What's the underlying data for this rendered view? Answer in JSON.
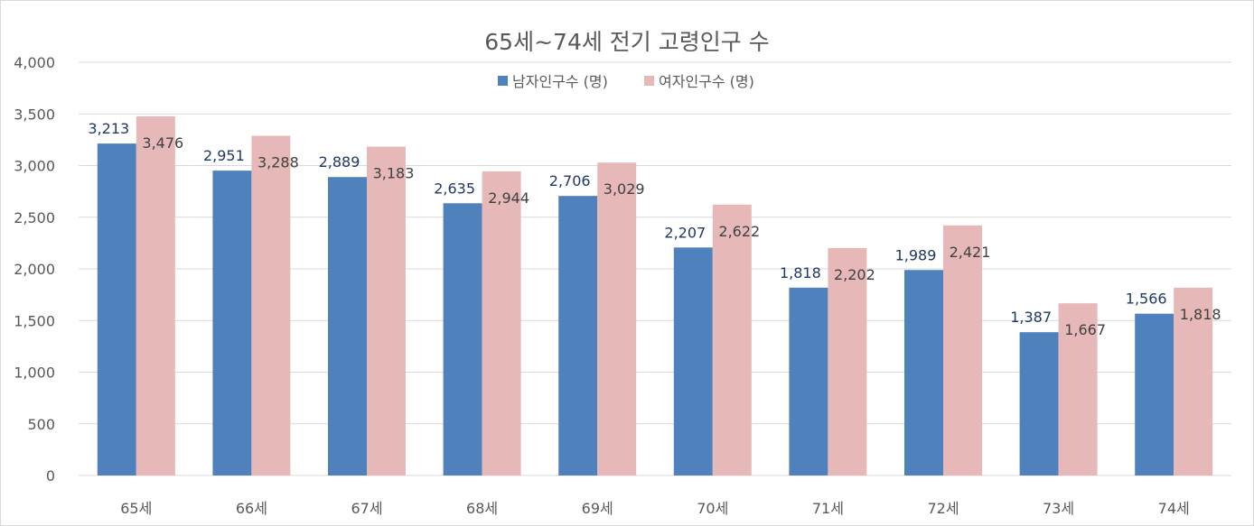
{
  "chart_data": {
    "type": "bar",
    "title": "65세~74세 전기 고령인구 수",
    "categories": [
      "65세",
      "66세",
      "67세",
      "68세",
      "69세",
      "70세",
      "71세",
      "72세",
      "73세",
      "74세"
    ],
    "series": [
      {
        "name": "남자인구수 (명)",
        "color": "#4f81bd",
        "values": [
          3213,
          2951,
          2889,
          2635,
          2706,
          2207,
          1818,
          1989,
          1387,
          1566
        ],
        "labels": [
          "3,213",
          "2,951",
          "2,889",
          "2,635",
          "2,706",
          "2,207",
          "1,818",
          "1,989",
          "1,387",
          "1,566"
        ]
      },
      {
        "name": "여자인구수 (명)",
        "color": "#e6b9b8",
        "values": [
          3476,
          3288,
          3183,
          2944,
          3029,
          2622,
          2202,
          2421,
          1667,
          1818
        ],
        "labels": [
          "3,476",
          "3,288",
          "3,183",
          "2,944",
          "3,029",
          "2,622",
          "2,202",
          "2,421",
          "1,667",
          "1,818"
        ]
      }
    ],
    "ylim": [
      0,
      4000
    ],
    "yticks": [
      0,
      500,
      1000,
      1500,
      2000,
      2500,
      3000,
      3500,
      4000
    ],
    "ytick_labels": [
      "0",
      "500",
      "1,000",
      "1,500",
      "2,000",
      "2,500",
      "3,000",
      "3,500",
      "4,000"
    ],
    "grid": true,
    "legend_position": "top-center"
  }
}
